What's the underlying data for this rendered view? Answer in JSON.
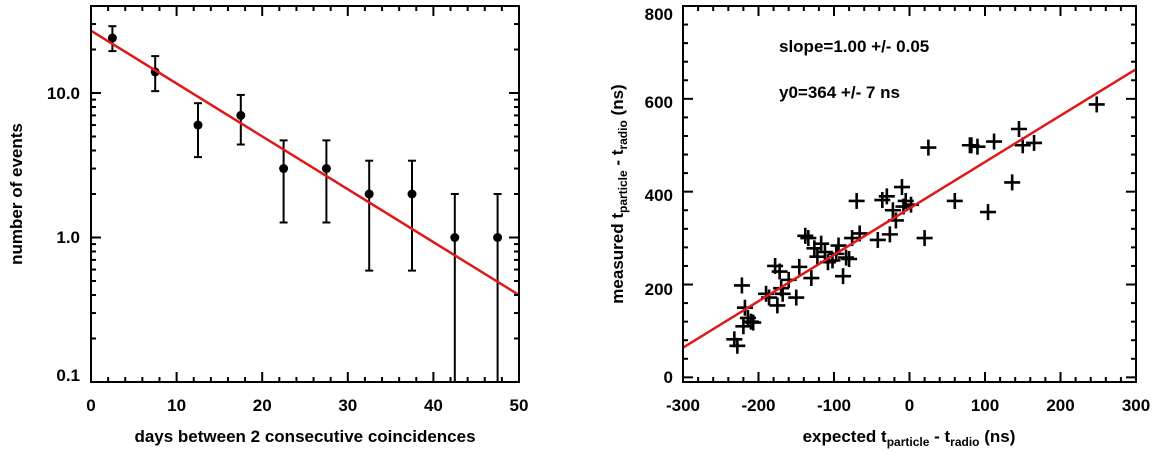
{
  "chart_data": [
    {
      "type": "scatter",
      "title": "",
      "xlabel": "days between 2 consecutive coincidences",
      "ylabel": "number of events",
      "x_scale": "linear",
      "y_scale": "log",
      "xlim": [
        0,
        50
      ],
      "ylim": [
        0.1,
        40
      ],
      "x_ticks": [
        0,
        10,
        20,
        30,
        40,
        50
      ],
      "x_tick_labels": [
        "0",
        "10",
        "20",
        "30",
        "40",
        "50"
      ],
      "y_ticks": [
        0.1,
        1,
        10
      ],
      "y_tick_labels": [
        "0.1",
        "1.0",
        "10.0"
      ],
      "grid": false,
      "series": [
        {
          "type": "points-with-errorbars",
          "color": "#000000",
          "points": [
            {
              "x": 2.5,
              "y": 24,
              "err_low": 19.5,
              "err_high": 29
            },
            {
              "x": 7.5,
              "y": 14,
              "err_low": 10.3,
              "err_high": 18
            },
            {
              "x": 12.5,
              "y": 6,
              "err_low": 3.6,
              "err_high": 8.5
            },
            {
              "x": 17.5,
              "y": 7,
              "err_low": 4.4,
              "err_high": 9.7
            },
            {
              "x": 22.5,
              "y": 3,
              "err_low": 1.27,
              "err_high": 4.7
            },
            {
              "x": 27.5,
              "y": 3,
              "err_low": 1.27,
              "err_high": 4.7
            },
            {
              "x": 32.5,
              "y": 2,
              "err_low": 0.59,
              "err_high": 3.4
            },
            {
              "x": 37.5,
              "y": 2,
              "err_low": 0.59,
              "err_high": 3.4
            },
            {
              "x": 42.5,
              "y": 1,
              "err_low": 0.1,
              "err_high": 2
            },
            {
              "x": 47.5,
              "y": 1,
              "err_low": 0.1,
              "err_high": 2
            }
          ]
        },
        {
          "type": "fit-line",
          "color": "#e01818",
          "x": [
            0,
            50
          ],
          "y": [
            27,
            0.4
          ]
        }
      ]
    },
    {
      "type": "scatter",
      "title": "",
      "xlabel_parts": [
        "expected t",
        "particle",
        " - t",
        "radio",
        " (ns)"
      ],
      "ylabel_parts": [
        "measured t",
        "particle",
        " - t",
        "radio",
        " (ns)"
      ],
      "xlim": [
        -300,
        300
      ],
      "ylim": [
        -10,
        800
      ],
      "x_ticks": [
        -300,
        -200,
        -100,
        0,
        100,
        200,
        300
      ],
      "x_tick_labels": [
        "-300",
        "-200",
        "-100",
        "0",
        "100",
        "200",
        "300"
      ],
      "y_ticks": [
        0,
        200,
        400,
        600,
        800
      ],
      "y_tick_labels": [
        "0",
        "200",
        "400",
        "600",
        "800"
      ],
      "grid": false,
      "annotations": [
        "slope=1.00 +/- 0.05",
        "y0=364 +/- 7 ns"
      ],
      "series": [
        {
          "type": "points",
          "marker": "plus",
          "color": "#000000",
          "points": [
            [
              -232,
              82
            ],
            [
              -228,
              68
            ],
            [
              -222,
              198
            ],
            [
              -220,
              110
            ],
            [
              -218,
              150
            ],
            [
              -214,
              128
            ],
            [
              -210,
              120
            ],
            [
              -207,
              118
            ],
            [
              -190,
              180
            ],
            [
              -186,
              172
            ],
            [
              -178,
              240
            ],
            [
              -175,
              155
            ],
            [
              -172,
              228
            ],
            [
              -170,
              192
            ],
            [
              -168,
              180
            ],
            [
              -160,
              210
            ],
            [
              -150,
              172
            ],
            [
              -146,
              238
            ],
            [
              -138,
              305
            ],
            [
              -134,
              300
            ],
            [
              -130,
              214
            ],
            [
              -126,
              278
            ],
            [
              -122,
              260
            ],
            [
              -117,
              288
            ],
            [
              -112,
              270
            ],
            [
              -108,
              248
            ],
            [
              -102,
              252
            ],
            [
              -97,
              266
            ],
            [
              -94,
              284
            ],
            [
              -88,
              218
            ],
            [
              -84,
              258
            ],
            [
              -80,
              255
            ],
            [
              -76,
              300
            ],
            [
              -70,
              380
            ],
            [
              -66,
              310
            ],
            [
              -42,
              296
            ],
            [
              -36,
              382
            ],
            [
              -30,
              390
            ],
            [
              -26,
              308
            ],
            [
              -22,
              360
            ],
            [
              -18,
              338
            ],
            [
              -10,
              410
            ],
            [
              -8,
              368
            ],
            [
              -5,
              380
            ],
            [
              2,
              372
            ],
            [
              20,
              300
            ],
            [
              25,
              495
            ],
            [
              60,
              380
            ],
            [
              80,
              500
            ],
            [
              82,
              500
            ],
            [
              90,
              497
            ],
            [
              104,
              356
            ],
            [
              112,
              508
            ],
            [
              136,
              420
            ],
            [
              145,
              535
            ],
            [
              150,
              500
            ],
            [
              165,
              505
            ],
            [
              248,
              588
            ]
          ]
        },
        {
          "type": "fit-line",
          "color": "#e01818",
          "x": [
            -300,
            300
          ],
          "y": [
            64,
            664
          ]
        }
      ]
    }
  ]
}
